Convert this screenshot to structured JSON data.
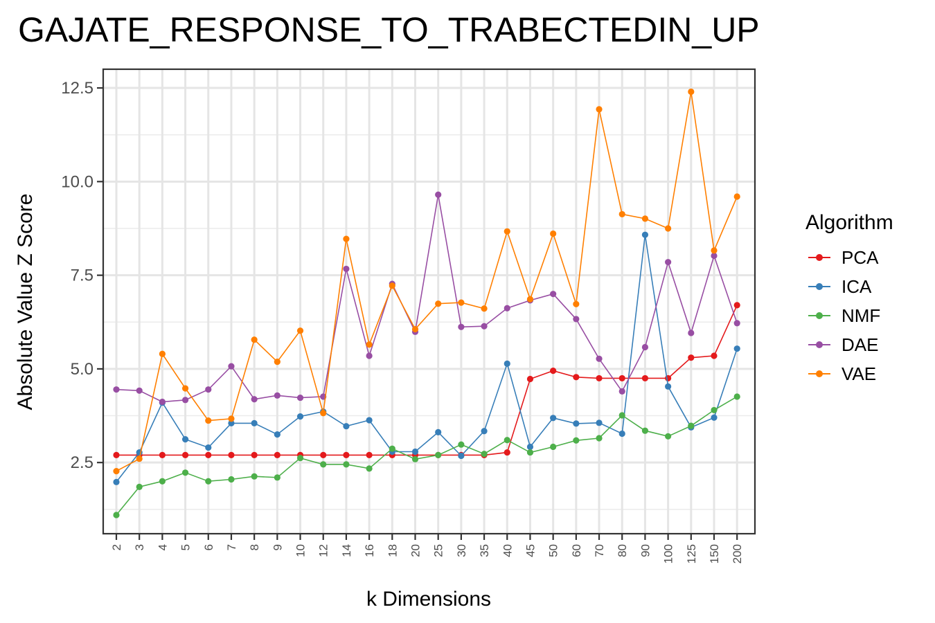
{
  "chart_data": {
    "type": "line",
    "title": "GAJATE_RESPONSE_TO_TRABECTEDIN_UP",
    "xlabel": "k Dimensions",
    "ylabel": "Absolute Value Z Score",
    "categories": [
      "2",
      "3",
      "4",
      "5",
      "6",
      "7",
      "8",
      "9",
      "10",
      "12",
      "14",
      "16",
      "18",
      "20",
      "25",
      "30",
      "35",
      "40",
      "45",
      "50",
      "60",
      "70",
      "80",
      "90",
      "100",
      "125",
      "150",
      "200"
    ],
    "yticks": [
      "2.5",
      "5.0",
      "7.5",
      "10.0",
      "12.5"
    ],
    "ylim": [
      0.6,
      13.0
    ],
    "grid": true,
    "legend": {
      "title": "Algorithm",
      "position": "right"
    },
    "series": [
      {
        "name": "PCA",
        "color": "#e41a1c",
        "values": [
          2.7,
          2.7,
          2.7,
          2.7,
          2.7,
          2.7,
          2.7,
          2.7,
          2.7,
          2.7,
          2.7,
          2.7,
          2.7,
          2.7,
          2.7,
          2.7,
          2.7,
          2.77,
          4.73,
          4.95,
          4.78,
          4.75,
          4.75,
          4.75,
          4.75,
          5.3,
          5.35,
          6.7
        ]
      },
      {
        "name": "ICA",
        "color": "#377eb8",
        "values": [
          1.98,
          2.77,
          4.1,
          3.12,
          2.9,
          3.55,
          3.55,
          3.25,
          3.73,
          3.86,
          3.47,
          3.63,
          2.79,
          2.79,
          3.31,
          2.68,
          3.34,
          5.14,
          2.92,
          3.69,
          3.54,
          3.56,
          3.27,
          8.58,
          4.53,
          3.44,
          3.7,
          5.54
        ]
      },
      {
        "name": "NMF",
        "color": "#4daf4a",
        "values": [
          1.1,
          1.85,
          2.0,
          2.23,
          2.0,
          2.05,
          2.13,
          2.1,
          2.62,
          2.45,
          2.45,
          2.34,
          2.87,
          2.59,
          2.7,
          2.98,
          2.73,
          3.1,
          2.77,
          2.92,
          3.09,
          3.15,
          3.76,
          3.35,
          3.2,
          3.48,
          3.9,
          4.26
        ]
      },
      {
        "name": "DAE",
        "color": "#984ea3",
        "values": [
          4.45,
          4.42,
          4.12,
          4.17,
          4.45,
          5.07,
          4.19,
          4.29,
          4.23,
          4.26,
          7.67,
          5.35,
          7.27,
          5.99,
          9.65,
          6.12,
          6.14,
          6.62,
          6.83,
          7.0,
          6.33,
          5.27,
          4.4,
          5.58,
          7.85,
          5.96,
          8.02,
          6.22
        ]
      },
      {
        "name": "VAE",
        "color": "#ff7f00",
        "values": [
          2.27,
          2.6,
          5.4,
          4.48,
          3.62,
          3.67,
          5.78,
          5.19,
          6.02,
          3.82,
          8.47,
          5.65,
          7.22,
          6.06,
          6.74,
          6.77,
          6.61,
          8.67,
          6.86,
          8.61,
          6.73,
          11.93,
          9.13,
          9.01,
          8.75,
          12.4,
          8.16,
          9.6
        ]
      }
    ]
  }
}
